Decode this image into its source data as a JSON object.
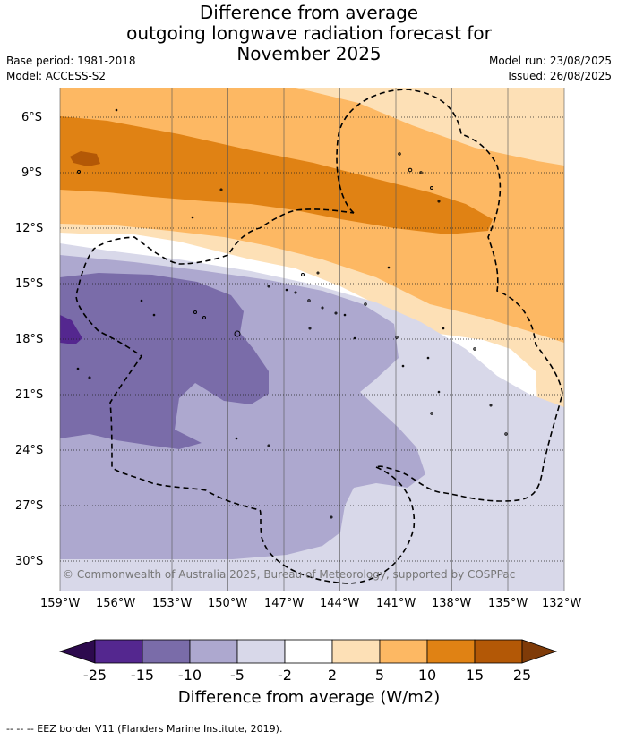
{
  "title": {
    "line1": "Difference from average",
    "line2": "outgoing longwave radiation forecast for",
    "line3": "November 2025"
  },
  "meta": {
    "base_period": "Base period: 1981-2018",
    "model": "Model: ACCESS-S2",
    "model_run": "Model run: 23/08/2025",
    "issued": "Issued: 26/08/2025"
  },
  "map": {
    "lat_labels": [
      "6°S",
      "9°S",
      "12°S",
      "15°S",
      "18°S",
      "21°S",
      "24°S",
      "27°S",
      "30°S"
    ],
    "lon_labels": [
      "159°W",
      "156°W",
      "153°W",
      "150°W",
      "147°W",
      "144°W",
      "141°W",
      "138°W",
      "135°W",
      "132°W"
    ],
    "copyright": "© Commonwealth of Australia 2025, Bureau of Meteorology, supported by COSPPac"
  },
  "colorbar": {
    "title": "Difference from average (W/m2)",
    "labels": [
      "-25",
      "-15",
      "-10",
      "-5",
      "-2",
      "2",
      "5",
      "10",
      "15",
      "25"
    ],
    "colors": {
      "below_-25": "#2d0a4e",
      "-25_-15": "#54278f",
      "-15_-10": "#7a6ca9",
      "-10_-5": "#ada8cf",
      "-5_-2": "#d8d8e9",
      "-2_2": "#ffffff",
      "2_5": "#fde0b6",
      "5_10": "#fdb863",
      "10_15": "#e08214",
      "15_25": "#b35806",
      "above_25": "#7f3b08"
    }
  },
  "footnote": "-- -- -- EEZ border V11 (Flanders Marine Institute, 2019)."
}
